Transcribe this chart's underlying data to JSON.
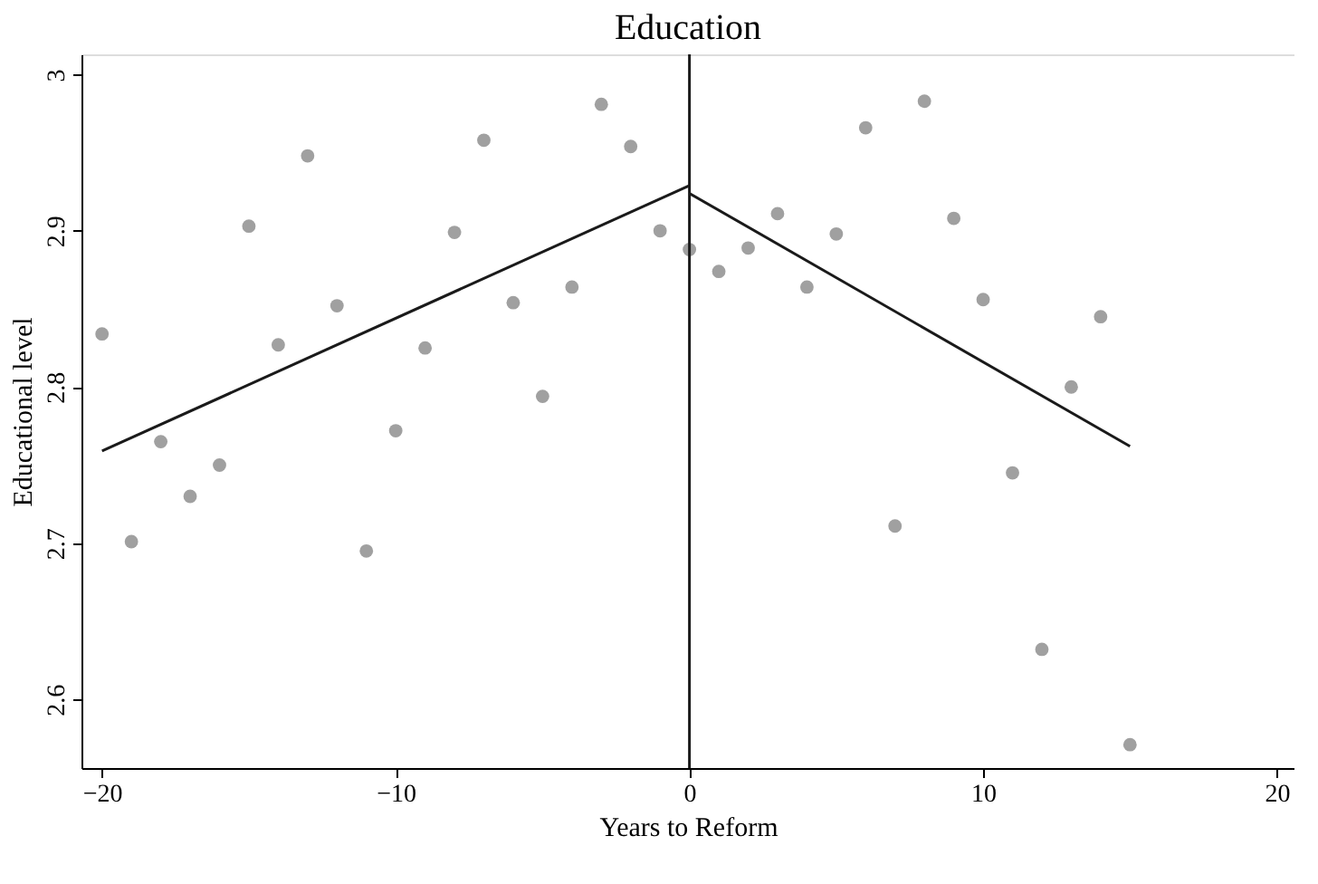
{
  "chart_data": {
    "type": "scatter",
    "title": "Education",
    "xlabel": "Years to Reform",
    "ylabel": "Educational level",
    "xlim": [
      -20.7,
      20.6
    ],
    "xticks": [
      -20,
      -10,
      0,
      10,
      20
    ],
    "ylim": [
      2.556,
      3.013
    ],
    "yticks": [
      2.6,
      2.7,
      2.8,
      2.9,
      3
    ],
    "grid": false,
    "series": [
      {
        "marker": "circle",
        "color": "#a0a0a0",
        "x": [
          -20,
          -19,
          -18,
          -17,
          -16,
          -15,
          -14,
          -13,
          -12,
          -11,
          -10,
          -9,
          -8,
          -7,
          -6,
          -5,
          -4,
          -3,
          -2,
          -1,
          0,
          1,
          2,
          3,
          4,
          5,
          6,
          7,
          8,
          9,
          10,
          11,
          12,
          13,
          14,
          15
        ],
        "values": [
          2.834,
          2.701,
          2.765,
          2.73,
          2.75,
          2.903,
          2.827,
          2.948,
          2.852,
          2.695,
          2.772,
          2.825,
          2.899,
          2.958,
          2.854,
          2.794,
          2.864,
          2.981,
          2.954,
          2.9,
          2.888,
          2.874,
          2.889,
          2.911,
          2.864,
          2.898,
          2.966,
          2.711,
          2.983,
          2.908,
          2.856,
          2.745,
          2.632,
          2.8,
          2.845,
          2.571
        ]
      },
      {
        "type": "line",
        "color": "#1a1a1a",
        "x": [
          -20,
          0
        ],
        "values": [
          2.759,
          2.929
        ]
      },
      {
        "type": "line",
        "color": "#1a1a1a",
        "x": [
          0,
          15
        ],
        "values": [
          2.924,
          2.762
        ]
      }
    ],
    "ref_lines": [
      {
        "axis": "x",
        "value": 0,
        "color": "#1a1a1a"
      }
    ]
  }
}
